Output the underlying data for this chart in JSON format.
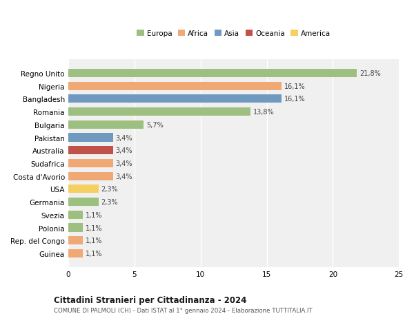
{
  "categories": [
    "Guinea",
    "Rep. del Congo",
    "Polonia",
    "Svezia",
    "Germania",
    "USA",
    "Costa d'Avorio",
    "Sudafrica",
    "Australia",
    "Pakistan",
    "Bulgaria",
    "Romania",
    "Bangladesh",
    "Nigeria",
    "Regno Unito"
  ],
  "values": [
    1.1,
    1.1,
    1.1,
    1.1,
    2.3,
    2.3,
    3.4,
    3.4,
    3.4,
    3.4,
    5.7,
    13.8,
    16.1,
    16.1,
    21.8
  ],
  "labels": [
    "1,1%",
    "1,1%",
    "1,1%",
    "1,1%",
    "2,3%",
    "2,3%",
    "3,4%",
    "3,4%",
    "3,4%",
    "3,4%",
    "5,7%",
    "13,8%",
    "16,1%",
    "16,1%",
    "21,8%"
  ],
  "colors": [
    "#f0a875",
    "#f0a875",
    "#9dbf7f",
    "#9dbf7f",
    "#9dbf7f",
    "#f5d060",
    "#f0a875",
    "#f0a875",
    "#c0524a",
    "#7099c0",
    "#9dbf7f",
    "#9dbf7f",
    "#7099c0",
    "#f0a875",
    "#9dbf7f"
  ],
  "legend_labels": [
    "Europa",
    "Africa",
    "Asia",
    "Oceania",
    "America"
  ],
  "legend_colors": [
    "#9dbf7f",
    "#f0a875",
    "#7099c0",
    "#c0524a",
    "#f5d060"
  ],
  "title": "Cittadini Stranieri per Cittadinanza - 2024",
  "subtitle": "COMUNE DI PALMOLI (CH) - Dati ISTAT al 1° gennaio 2024 - Elaborazione TUTTITALIA.IT",
  "xlim": [
    0,
    25
  ],
  "xticks": [
    0,
    5,
    10,
    15,
    20,
    25
  ],
  "background_color": "#ffffff",
  "plot_bg": "#f0f0f0"
}
